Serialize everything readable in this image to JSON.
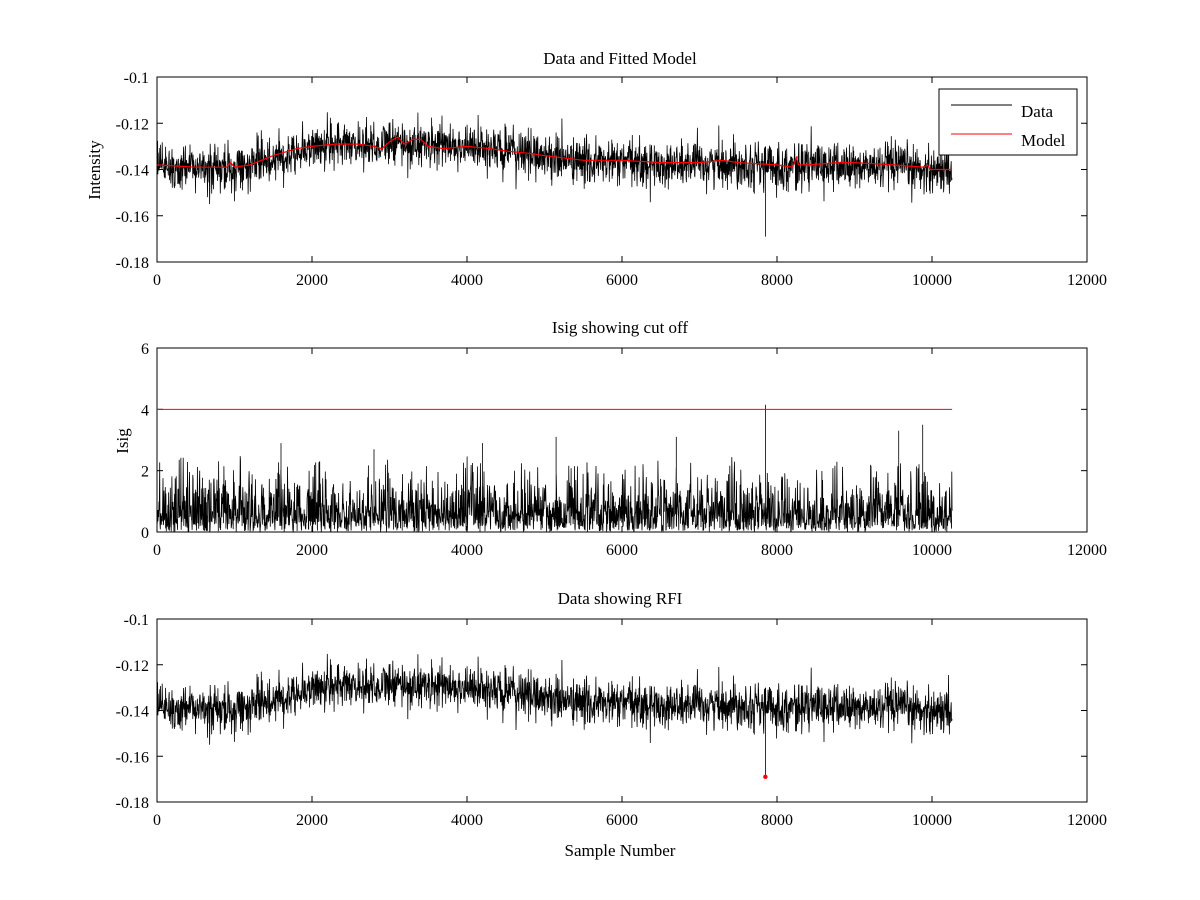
{
  "figure": {
    "background": "#ffffff",
    "colors": {
      "data": "#000000",
      "model": "#ff0000",
      "cutoff": "#ff0000",
      "rfi": "#ff0000"
    }
  },
  "chart_data": [
    {
      "type": "line",
      "title": "Data and Fitted Model",
      "xlabel": "",
      "ylabel": "Intensity",
      "xlim": [
        0,
        12000
      ],
      "ylim": [
        -0.18,
        -0.1
      ],
      "xticks": [
        "0",
        "2000",
        "4000",
        "6000",
        "8000",
        "10000",
        "12000"
      ],
      "yticks": [
        "-0.1",
        "-0.12",
        "-0.14",
        "-0.16",
        "-0.18"
      ],
      "grid": false,
      "legend": {
        "position": "top-right",
        "entries": [
          "Data",
          "Model"
        ]
      },
      "series": [
        {
          "name": "Data",
          "color": "#000000",
          "description_points": {
            "x": [
              0,
              500,
              1000,
              1500,
              2000,
              2500,
              3000,
              3500,
              4000,
              4500,
              5000,
              5500,
              6000,
              6500,
              7000,
              7500,
              8000,
              8500,
              9000,
              9500,
              10000,
              10260
            ],
            "y": [
              -0.139,
              -0.14,
              -0.14,
              -0.135,
              -0.13,
              -0.129,
              -0.129,
              -0.129,
              -0.13,
              -0.132,
              -0.134,
              -0.137,
              -0.137,
              -0.138,
              -0.138,
              -0.137,
              -0.139,
              -0.138,
              -0.139,
              -0.139,
              -0.14,
              -0.14
            ],
            "noise_amplitude": 0.011
          }
        },
        {
          "name": "Model",
          "color": "#ff0000",
          "x": [
            0,
            500,
            900,
            950,
            1000,
            1200,
            1500,
            1800,
            2000,
            2300,
            2600,
            2800,
            2900,
            3000,
            3100,
            3200,
            3300,
            3400,
            3500,
            3700,
            4000,
            4300,
            4500,
            4800,
            5000,
            5500,
            6000,
            6500,
            7000,
            7300,
            7500,
            8000,
            8200,
            8250,
            8280,
            8300,
            8400,
            8800,
            9000,
            9500,
            9900,
            9940,
            9980,
            10260
          ],
          "y": [
            -0.138,
            -0.139,
            -0.139,
            -0.137,
            -0.139,
            -0.138,
            -0.134,
            -0.131,
            -0.13,
            -0.129,
            -0.129,
            -0.13,
            -0.131,
            -0.128,
            -0.126,
            -0.129,
            -0.127,
            -0.127,
            -0.13,
            -0.131,
            -0.13,
            -0.131,
            -0.132,
            -0.133,
            -0.134,
            -0.136,
            -0.136,
            -0.137,
            -0.137,
            -0.136,
            -0.137,
            -0.138,
            -0.139,
            -0.135,
            -0.138,
            -0.138,
            -0.138,
            -0.137,
            -0.137,
            -0.138,
            -0.139,
            -0.138,
            -0.14,
            -0.14
          ]
        }
      ]
    },
    {
      "type": "line",
      "title": "Isig showing cut off",
      "xlabel": "",
      "ylabel": "Isig",
      "xlim": [
        0,
        12000
      ],
      "ylim": [
        0,
        6
      ],
      "xticks": [
        "0",
        "2000",
        "4000",
        "6000",
        "8000",
        "10000",
        "12000"
      ],
      "yticks": [
        "0",
        "2",
        "4",
        "6"
      ],
      "grid": false,
      "cutoff": {
        "y": 4,
        "x_start": 0,
        "x_end": 10260,
        "color": "#ff0000"
      },
      "series": [
        {
          "color": "#000000",
          "description_points": {
            "x_range": [
              0,
              10260
            ],
            "typical_max": 2.5,
            "peaks": [
              {
                "x": 1600,
                "y": 2.9
              },
              {
                "x": 2800,
                "y": 2.7
              },
              {
                "x": 4200,
                "y": 2.9
              },
              {
                "x": 5150,
                "y": 3.1
              },
              {
                "x": 6700,
                "y": 3.1
              },
              {
                "x": 7850,
                "y": 4.15
              },
              {
                "x": 9570,
                "y": 3.3
              },
              {
                "x": 9880,
                "y": 3.5
              }
            ]
          }
        }
      ]
    },
    {
      "type": "line",
      "title": "Data showing RFI",
      "xlabel": "Sample Number",
      "ylabel": "",
      "xlim": [
        0,
        12000
      ],
      "ylim": [
        -0.18,
        -0.1
      ],
      "xticks": [
        "0",
        "2000",
        "4000",
        "6000",
        "8000",
        "10000",
        "12000"
      ],
      "yticks": [
        "-0.1",
        "-0.12",
        "-0.14",
        "-0.16",
        "-0.18"
      ],
      "grid": false,
      "rfi_points": [
        {
          "x": 7850,
          "y": -0.169
        }
      ],
      "series": [
        {
          "color": "#000000",
          "description_points": {
            "x": [
              0,
              500,
              1000,
              1500,
              2000,
              2500,
              3000,
              3500,
              4000,
              4500,
              5000,
              5500,
              6000,
              6500,
              7000,
              7500,
              8000,
              8500,
              9000,
              9500,
              10000,
              10260
            ],
            "y": [
              -0.139,
              -0.14,
              -0.14,
              -0.135,
              -0.13,
              -0.129,
              -0.129,
              -0.129,
              -0.13,
              -0.132,
              -0.134,
              -0.137,
              -0.137,
              -0.138,
              -0.138,
              -0.137,
              -0.139,
              -0.138,
              -0.139,
              -0.139,
              -0.14,
              -0.14
            ],
            "noise_amplitude": 0.011
          }
        }
      ]
    }
  ]
}
